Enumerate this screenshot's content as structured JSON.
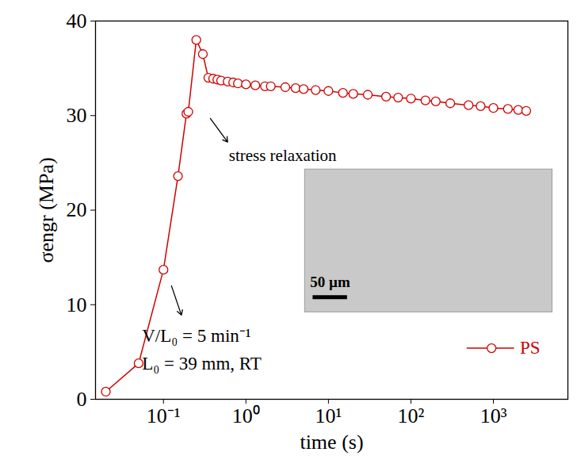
{
  "chart_data": {
    "type": "line",
    "x_label": "time (s)",
    "y_label": "σengr (MPa)",
    "log": "x",
    "xlim": [
      0.015,
      8000
    ],
    "ylim": [
      0,
      40
    ],
    "xticks": [
      {
        "value": 0.1,
        "label": "10⁻¹"
      },
      {
        "value": 1,
        "label": "10⁰"
      },
      {
        "value": 10,
        "label": "10¹"
      },
      {
        "value": 100,
        "label": "10²"
      },
      {
        "value": 1000,
        "label": "10³"
      }
    ],
    "yticks": [
      0,
      10,
      20,
      30,
      40
    ],
    "legend": "lower right",
    "annotations": [
      "stress relaxation",
      "V/L₀ = 5 min⁻¹",
      "L₀ = 39 mm, RT"
    ],
    "inset_scale_bar": "50 µm",
    "x": [
      0.02,
      0.05,
      0.1,
      0.15,
      0.19,
      0.2,
      0.25,
      0.3,
      0.35,
      0.4,
      0.45,
      0.5,
      0.6,
      0.7,
      0.8,
      1,
      1.3,
      1.7,
      2,
      3,
      4,
      5,
      7,
      10,
      15,
      20,
      30,
      50,
      70,
      100,
      150,
      200,
      300,
      500,
      700,
      1000,
      1500,
      2000,
      2500
    ],
    "series": [
      {
        "name": "PS",
        "color": "#d00000",
        "marker": "open circle",
        "line_style": "solid",
        "values": [
          0.8,
          3.8,
          13.7,
          23.6,
          30.2,
          30.4,
          38,
          36.5,
          34,
          33.9,
          33.8,
          33.7,
          33.6,
          33.5,
          33.4,
          33.3,
          33.2,
          33.1,
          33.1,
          33.0,
          32.9,
          32.8,
          32.7,
          32.6,
          32.4,
          32.3,
          32.2,
          32.0,
          31.9,
          31.8,
          31.6,
          31.5,
          31.3,
          31.1,
          31.0,
          30.8,
          30.7,
          30.6,
          30.5
        ]
      }
    ]
  }
}
